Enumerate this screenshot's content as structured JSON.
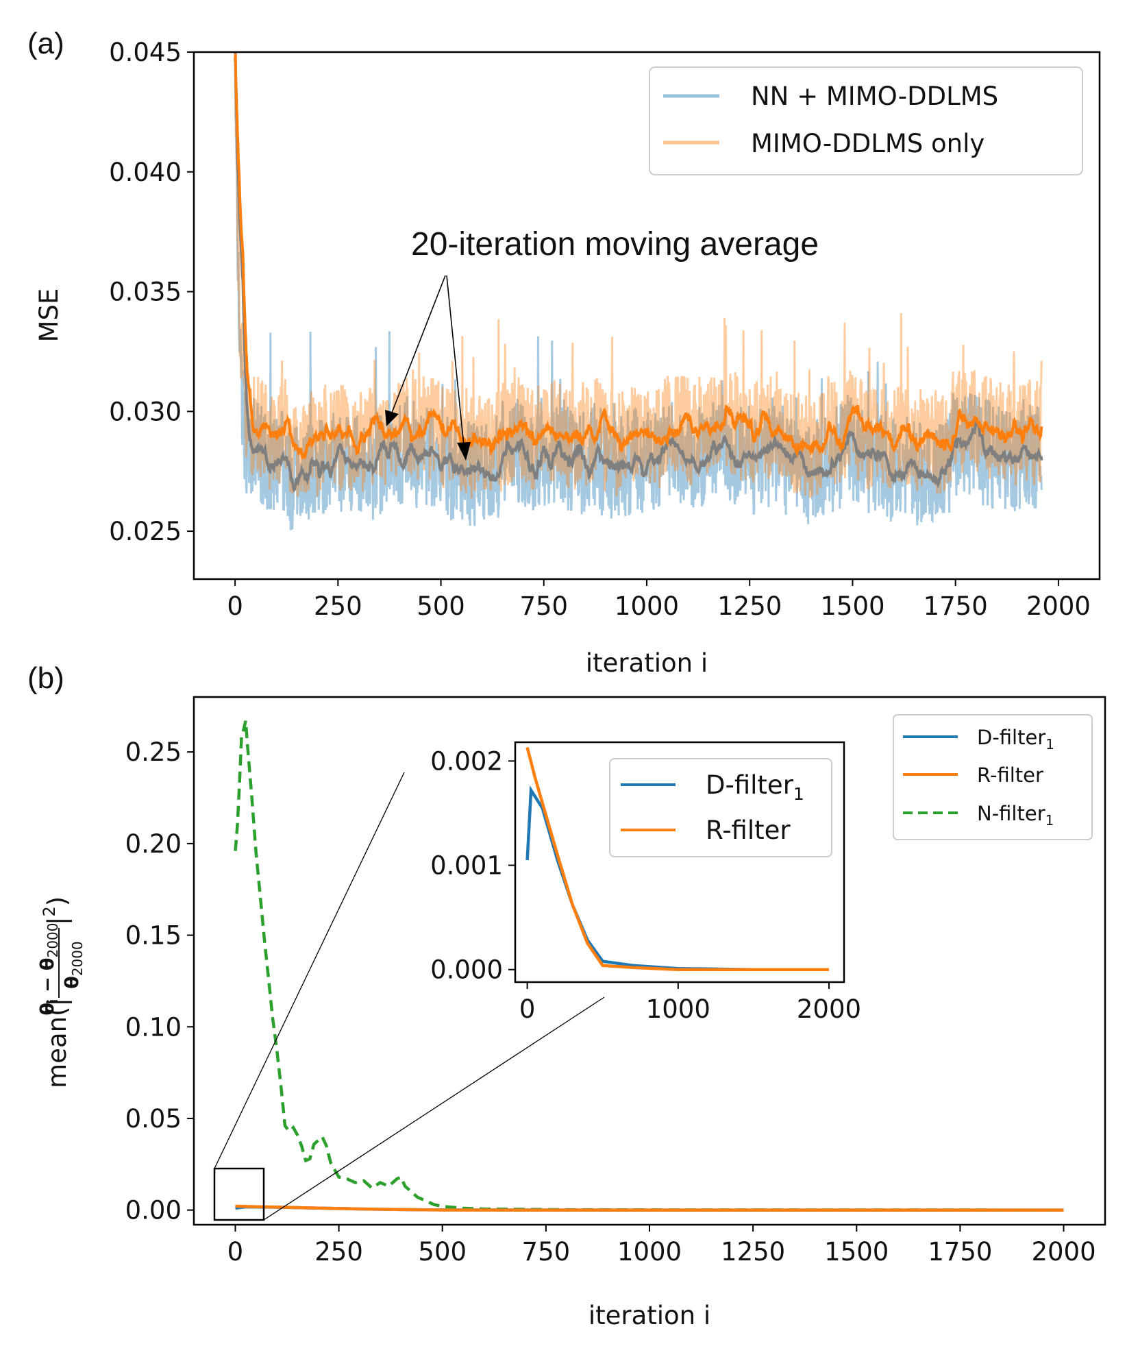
{
  "chart_data": [
    {
      "panel": "(a)",
      "type": "line",
      "title": "",
      "xlabel": "iteration i",
      "ylabel": "MSE",
      "xlim": [
        -100,
        2100
      ],
      "ylim": [
        0.023,
        0.045
      ],
      "xticks": [
        0,
        250,
        500,
        750,
        1000,
        1250,
        1500,
        1750,
        2000
      ],
      "yticks": [
        0.025,
        0.03,
        0.035,
        0.04,
        0.045
      ],
      "xtick_labels": [
        "0",
        "250",
        "500",
        "750",
        "1000",
        "1250",
        "1500",
        "1750",
        "2000"
      ],
      "ytick_labels": [
        "0.025",
        "0.030",
        "0.035",
        "0.040",
        "0.045"
      ],
      "legend_position": "top-right",
      "series": [
        {
          "name": "NN + MIMO-DDLMS",
          "color": "#1f77b4",
          "alpha": 0.4,
          "initial": 0.045,
          "plateau": 0.0279,
          "noise": 0.0022
        },
        {
          "name": "MIMO-DDLMS only",
          "color": "#ff7f0e",
          "alpha": 0.4,
          "initial": 0.045,
          "plateau": 0.029,
          "noise": 0.0022
        },
        {
          "name": "moving average (NN + MIMO-DDLMS)",
          "color": "#7f7f7f",
          "alpha": 1.0,
          "plateau": 0.0279,
          "window": 20
        },
        {
          "name": "moving average (MIMO-DDLMS only)",
          "color": "#ff7f0e",
          "alpha": 1.0,
          "plateau": 0.029,
          "window": 20
        }
      ],
      "annotations": [
        "20-iteration moving average"
      ]
    },
    {
      "panel": "(b)",
      "type": "line",
      "title": "",
      "xlabel": "iteration i",
      "ylabel": "mean(|(θ_i − θ_2000)/θ_2000|²)",
      "xlim": [
        -100,
        2100
      ],
      "ylim": [
        -0.008,
        0.28
      ],
      "xticks": [
        0,
        250,
        500,
        750,
        1000,
        1250,
        1500,
        1750,
        2000
      ],
      "yticks": [
        0.0,
        0.05,
        0.1,
        0.15,
        0.2,
        0.25
      ],
      "xtick_labels": [
        "0",
        "250",
        "500",
        "750",
        "1000",
        "1250",
        "1500",
        "1750",
        "2000"
      ],
      "ytick_labels": [
        "0.00",
        "0.05",
        "0.10",
        "0.15",
        "0.20",
        "0.25"
      ],
      "legend_position": "top-right",
      "series": [
        {
          "name": "D-filter",
          "subscript": "1",
          "color": "#1f77b4",
          "style": "solid",
          "x": [
            0,
            25,
            100,
            200,
            300,
            400,
            500,
            700,
            1000,
            1500,
            2000
          ],
          "y": [
            0.00105,
            0.00172,
            0.00155,
            0.00105,
            0.00062,
            0.00028,
            8e-05,
            4e-05,
            1e-05,
            0.0,
            0.0
          ]
        },
        {
          "name": "R-filter",
          "subscript": "",
          "color": "#ff7f0e",
          "style": "solid",
          "x": [
            0,
            50,
            100,
            200,
            300,
            400,
            500,
            700,
            1000,
            1500,
            2000
          ],
          "y": [
            0.00213,
            0.00185,
            0.0016,
            0.0011,
            0.00062,
            0.00025,
            4e-05,
            2e-05,
            0.0,
            0.0,
            0.0
          ]
        },
        {
          "name": "N-filter",
          "subscript": "1",
          "color": "#2ca02c",
          "style": "dashed",
          "x": [
            0,
            5,
            10,
            15,
            20,
            25,
            30,
            40,
            50,
            60,
            70,
            80,
            90,
            100,
            110,
            120,
            130,
            140,
            150,
            160,
            170,
            180,
            190,
            200,
            210,
            220,
            230,
            240,
            250,
            270,
            290,
            310,
            330,
            350,
            370,
            390,
            400,
            410,
            420,
            440,
            460,
            480,
            500,
            550,
            600,
            700,
            800,
            1000,
            1500,
            2000
          ],
          "y": [
            0.196,
            0.21,
            0.232,
            0.258,
            0.262,
            0.267,
            0.252,
            0.225,
            0.195,
            0.172,
            0.148,
            0.127,
            0.105,
            0.088,
            0.068,
            0.046,
            0.043,
            0.045,
            0.041,
            0.035,
            0.027,
            0.028,
            0.036,
            0.038,
            0.04,
            0.035,
            0.026,
            0.022,
            0.018,
            0.017,
            0.015,
            0.016,
            0.012,
            0.015,
            0.013,
            0.017,
            0.018,
            0.013,
            0.011,
            0.007,
            0.005,
            0.003,
            0.002,
            0.001,
            0.0006,
            0.0004,
            0.0002,
            0.0001,
            5e-05,
            0.0
          ]
        }
      ],
      "inset": {
        "xlim": [
          -80,
          2100
        ],
        "ylim": [
          -0.00012,
          0.00218
        ],
        "xticks": [
          0,
          1000,
          2000
        ],
        "yticks": [
          0.0,
          0.001,
          0.002
        ],
        "xtick_labels": [
          "0",
          "1000",
          "2000"
        ],
        "ytick_labels": [
          "0.000",
          "0.001",
          "0.002"
        ],
        "series_names": [
          "D-filter",
          "R-filter"
        ]
      }
    }
  ],
  "labels": {
    "panel_a": "(a)",
    "panel_b": "(b)",
    "annotation": "20-iteration moving average",
    "b_ylabel_prefix": "mean(|",
    "b_ylabel_suffix": "|",
    "b_ylabel_power": "2",
    "b_ylabel_close": ")",
    "b_ylabel_num_theta": "θ",
    "b_ylabel_num_i": "i",
    "b_ylabel_num_minus": " − θ",
    "b_ylabel_num_2000": "2000",
    "b_ylabel_den_theta": "θ",
    "b_ylabel_den_2000": "2000"
  }
}
